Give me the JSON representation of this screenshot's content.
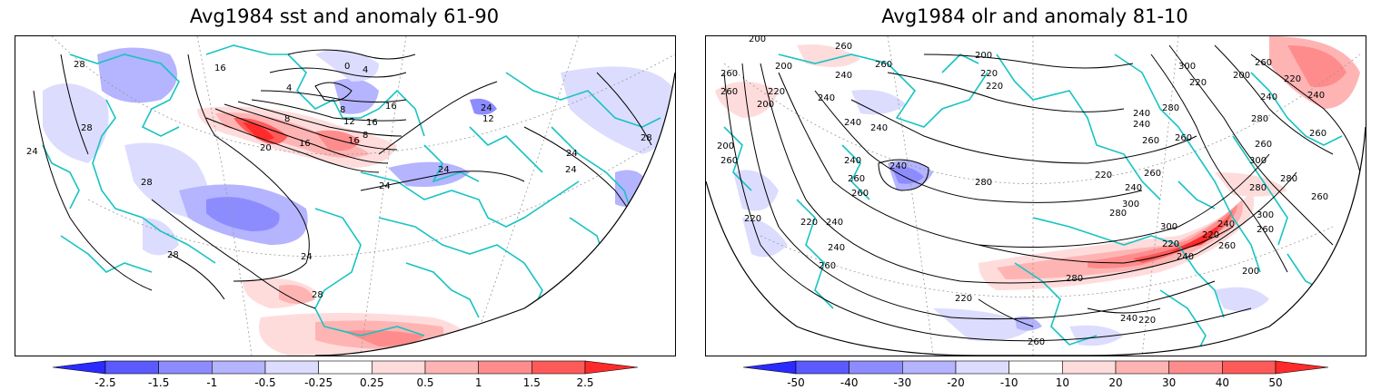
{
  "panels": [
    {
      "title": "Avg1984 sst and anomaly 61-90",
      "colorbar": {
        "boundaries": [
          "-2.5",
          "-1.5",
          "-1",
          "-0.5",
          "-0.25",
          "0.25",
          "0.5",
          "1",
          "1.5",
          "2.5"
        ],
        "colors": [
          "#2b2bff",
          "#5a5aff",
          "#8c8cff",
          "#b4b4ff",
          "#dcdcff",
          "#ffffff",
          "#ffdcdc",
          "#ffb4b4",
          "#ff8c8c",
          "#ff5a5a",
          "#ff2b2b"
        ]
      },
      "contour_labels": [
        {
          "text": "28"
        },
        {
          "text": "24"
        },
        {
          "text": "28"
        },
        {
          "text": "28"
        },
        {
          "text": "24"
        },
        {
          "text": "28"
        },
        {
          "text": "28"
        },
        {
          "text": "16"
        },
        {
          "text": "0"
        },
        {
          "text": "4"
        },
        {
          "text": "4"
        },
        {
          "text": "8"
        },
        {
          "text": "8"
        },
        {
          "text": "12"
        },
        {
          "text": "16"
        },
        {
          "text": "16"
        },
        {
          "text": "20"
        },
        {
          "text": "16"
        },
        {
          "text": "16"
        },
        {
          "text": "8"
        },
        {
          "text": "24"
        },
        {
          "text": "24"
        },
        {
          "text": "24"
        },
        {
          "text": "28"
        },
        {
          "text": "24"
        },
        {
          "text": "12"
        },
        {
          "text": "24"
        }
      ]
    },
    {
      "title": "Avg1984 olr and anomaly 81-10",
      "colorbar": {
        "boundaries": [
          "-50",
          "-40",
          "-30",
          "-20",
          "-10",
          "10",
          "20",
          "30",
          "40",
          "50"
        ],
        "colors": [
          "#2b2bff",
          "#5a5aff",
          "#8c8cff",
          "#b4b4ff",
          "#dcdcff",
          "#ffffff",
          "#ffdcdc",
          "#ffb4b4",
          "#ff8c8c",
          "#ff5a5a",
          "#ff2b2b"
        ]
      },
      "contour_labels": [
        {
          "text": "200"
        },
        {
          "text": "260"
        },
        {
          "text": "200"
        },
        {
          "text": "240"
        },
        {
          "text": "260"
        },
        {
          "text": "200"
        },
        {
          "text": "220"
        },
        {
          "text": "260"
        },
        {
          "text": "220"
        },
        {
          "text": "240"
        },
        {
          "text": "200"
        },
        {
          "text": "260"
        },
        {
          "text": "240"
        },
        {
          "text": "240"
        },
        {
          "text": "240"
        },
        {
          "text": "260"
        },
        {
          "text": "240"
        },
        {
          "text": "280"
        },
        {
          "text": "220"
        },
        {
          "text": "280"
        },
        {
          "text": "260"
        },
        {
          "text": "300"
        },
        {
          "text": "200"
        },
        {
          "text": "220"
        },
        {
          "text": "220"
        },
        {
          "text": "260"
        },
        {
          "text": "240"
        },
        {
          "text": "240"
        },
        {
          "text": "260"
        },
        {
          "text": "300"
        },
        {
          "text": "260"
        },
        {
          "text": "260"
        },
        {
          "text": "240"
        },
        {
          "text": "280"
        },
        {
          "text": "260"
        },
        {
          "text": "300"
        },
        {
          "text": "280"
        },
        {
          "text": "240"
        },
        {
          "text": "240"
        },
        {
          "text": "280"
        },
        {
          "text": "220"
        },
        {
          "text": "260"
        },
        {
          "text": "220"
        },
        {
          "text": "300"
        },
        {
          "text": "240"
        },
        {
          "text": "220"
        },
        {
          "text": "260"
        },
        {
          "text": "300"
        },
        {
          "text": "280"
        },
        {
          "text": "200"
        },
        {
          "text": "260"
        },
        {
          "text": "220"
        },
        {
          "text": "240"
        },
        {
          "text": "260"
        },
        {
          "text": "240"
        },
        {
          "text": "220"
        },
        {
          "text": "200"
        },
        {
          "text": "240"
        },
        {
          "text": "260"
        },
        {
          "text": "220"
        },
        {
          "text": "260"
        },
        {
          "text": "220"
        },
        {
          "text": "240"
        },
        {
          "text": "260"
        },
        {
          "text": "280"
        }
      ]
    }
  ]
}
